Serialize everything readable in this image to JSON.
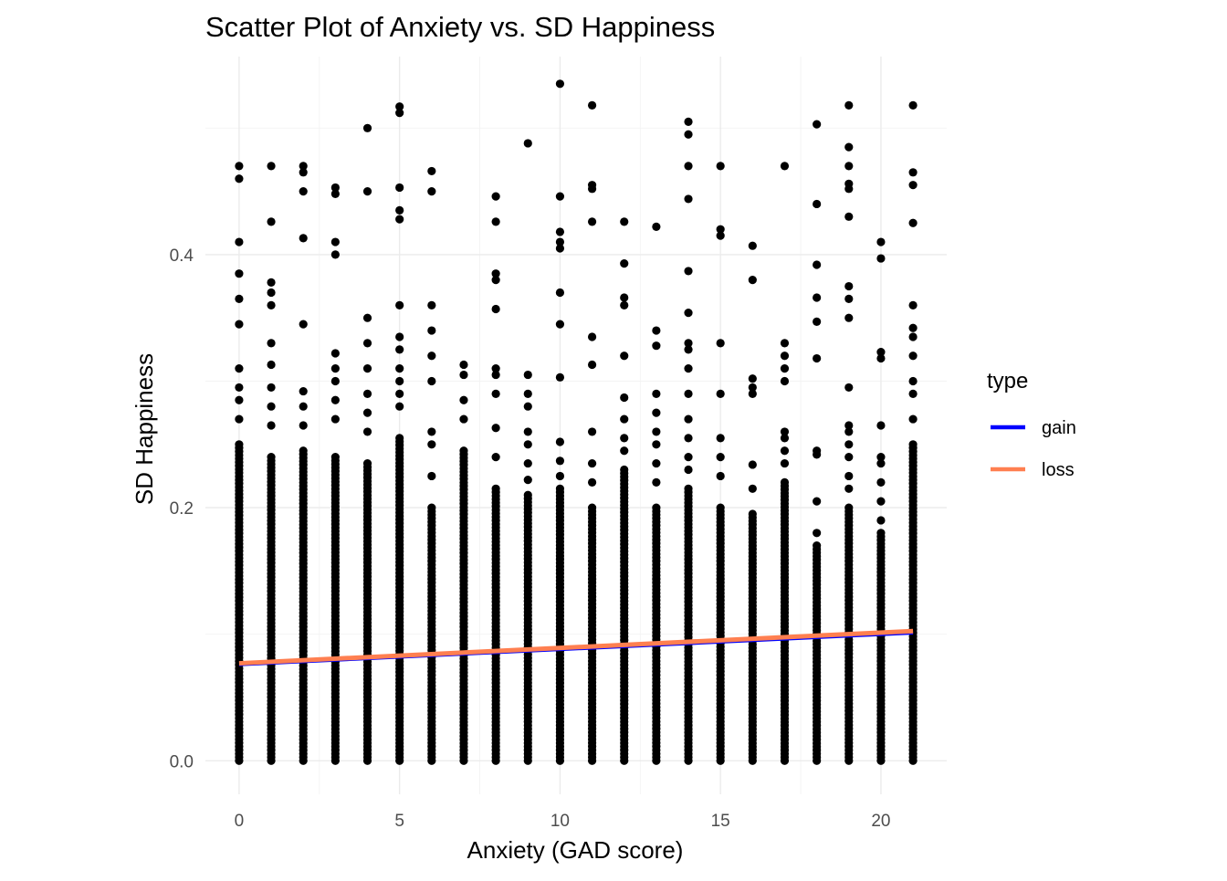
{
  "chart_data": {
    "type": "scatter",
    "title": "Scatter Plot of Anxiety vs. SD Happiness",
    "xlabel": "Anxiety (GAD score)",
    "ylabel": "SD Happiness",
    "xlim": [
      -1.05,
      22.05
    ],
    "ylim": [
      -0.0265,
      0.5565
    ],
    "x_ticks": [
      0,
      5,
      10,
      15,
      20
    ],
    "x_tick_labels": [
      "0",
      "5",
      "10",
      "15",
      "20"
    ],
    "y_ticks": [
      0.0,
      0.2,
      0.4
    ],
    "y_tick_labels": [
      "0.0",
      "0.2",
      "0.4"
    ],
    "grid": true,
    "point_color": "#000000",
    "points_by_x": [
      {
        "x": 0,
        "dense_top": 0.25,
        "outliers": [
          0.47,
          0.46,
          0.41,
          0.385,
          0.365,
          0.345,
          0.31,
          0.295,
          0.285,
          0.27
        ]
      },
      {
        "x": 1,
        "dense_top": 0.24,
        "outliers": [
          0.47,
          0.426,
          0.378,
          0.37,
          0.36,
          0.33,
          0.313,
          0.295,
          0.28,
          0.265
        ]
      },
      {
        "x": 2,
        "dense_top": 0.245,
        "outliers": [
          0.47,
          0.465,
          0.45,
          0.413,
          0.345,
          0.292,
          0.28,
          0.265
        ]
      },
      {
        "x": 3,
        "dense_top": 0.24,
        "outliers": [
          0.453,
          0.448,
          0.41,
          0.4,
          0.322,
          0.31,
          0.3,
          0.285,
          0.27
        ]
      },
      {
        "x": 4,
        "dense_top": 0.235,
        "outliers": [
          0.5,
          0.45,
          0.35,
          0.33,
          0.31,
          0.29,
          0.275,
          0.26
        ]
      },
      {
        "x": 5,
        "dense_top": 0.255,
        "outliers": [
          0.517,
          0.512,
          0.453,
          0.435,
          0.428,
          0.36,
          0.335,
          0.325,
          0.31,
          0.3,
          0.29,
          0.28
        ]
      },
      {
        "x": 6,
        "dense_top": 0.2,
        "outliers": [
          0.466,
          0.45,
          0.36,
          0.34,
          0.32,
          0.3,
          0.26,
          0.25,
          0.225
        ]
      },
      {
        "x": 7,
        "dense_top": 0.245,
        "outliers": [
          0.313,
          0.305,
          0.285,
          0.27
        ]
      },
      {
        "x": 8,
        "dense_top": 0.215,
        "outliers": [
          0.446,
          0.426,
          0.385,
          0.38,
          0.357,
          0.31,
          0.305,
          0.29,
          0.263,
          0.24
        ]
      },
      {
        "x": 9,
        "dense_top": 0.21,
        "outliers": [
          0.488,
          0.305,
          0.29,
          0.28,
          0.26,
          0.25,
          0.235,
          0.222
        ]
      },
      {
        "x": 10,
        "dense_top": 0.215,
        "outliers": [
          0.535,
          0.446,
          0.418,
          0.41,
          0.405,
          0.37,
          0.345,
          0.303,
          0.252,
          0.237,
          0.225
        ]
      },
      {
        "x": 11,
        "dense_top": 0.2,
        "outliers": [
          0.518,
          0.455,
          0.452,
          0.426,
          0.335,
          0.313,
          0.26,
          0.235,
          0.22
        ]
      },
      {
        "x": 12,
        "dense_top": 0.23,
        "outliers": [
          0.426,
          0.393,
          0.366,
          0.36,
          0.32,
          0.287,
          0.27,
          0.255,
          0.245
        ]
      },
      {
        "x": 13,
        "dense_top": 0.2,
        "outliers": [
          0.422,
          0.34,
          0.328,
          0.29,
          0.275,
          0.26,
          0.25,
          0.235,
          0.22
        ]
      },
      {
        "x": 14,
        "dense_top": 0.215,
        "outliers": [
          0.505,
          0.495,
          0.47,
          0.444,
          0.387,
          0.354,
          0.33,
          0.325,
          0.31,
          0.29,
          0.27,
          0.255,
          0.24,
          0.23
        ]
      },
      {
        "x": 15,
        "dense_top": 0.2,
        "outliers": [
          0.47,
          0.42,
          0.415,
          0.33,
          0.29,
          0.255,
          0.24,
          0.225
        ]
      },
      {
        "x": 16,
        "dense_top": 0.195,
        "outliers": [
          0.407,
          0.38,
          0.302,
          0.295,
          0.29,
          0.234,
          0.215
        ]
      },
      {
        "x": 17,
        "dense_top": 0.22,
        "outliers": [
          0.47,
          0.33,
          0.32,
          0.31,
          0.3,
          0.26,
          0.255,
          0.245,
          0.235
        ]
      },
      {
        "x": 18,
        "dense_top": 0.17,
        "outliers": [
          0.503,
          0.44,
          0.392,
          0.366,
          0.347,
          0.318,
          0.245,
          0.242,
          0.205,
          0.18
        ]
      },
      {
        "x": 19,
        "dense_top": 0.2,
        "outliers": [
          0.518,
          0.485,
          0.47,
          0.456,
          0.452,
          0.43,
          0.375,
          0.365,
          0.35,
          0.295,
          0.265,
          0.26,
          0.25,
          0.24,
          0.225,
          0.215
        ]
      },
      {
        "x": 20,
        "dense_top": 0.18,
        "outliers": [
          0.41,
          0.397,
          0.323,
          0.318,
          0.265,
          0.24,
          0.235,
          0.22,
          0.205,
          0.19
        ]
      },
      {
        "x": 21,
        "dense_top": 0.25,
        "outliers": [
          0.518,
          0.465,
          0.455,
          0.425,
          0.36,
          0.342,
          0.335,
          0.32,
          0.3,
          0.29,
          0.27
        ]
      }
    ],
    "series": [
      {
        "name": "gain",
        "type": "line",
        "color": "#0000ff",
        "x": [
          0,
          21
        ],
        "y": [
          0.0755,
          0.1005
        ]
      },
      {
        "name": "loss",
        "type": "line",
        "color": "#ff7f50",
        "x": [
          0,
          21
        ],
        "y": [
          0.077,
          0.1025
        ]
      }
    ],
    "legend": {
      "title": "type",
      "position": "right",
      "entries": [
        "gain",
        "loss"
      ]
    }
  }
}
